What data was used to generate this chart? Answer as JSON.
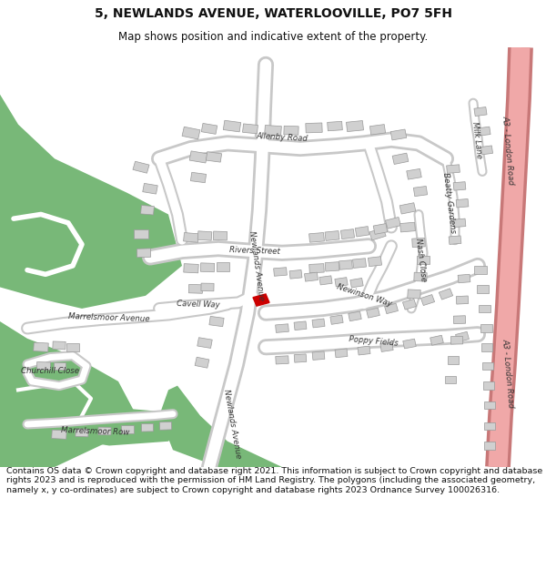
{
  "title_line1": "5, NEWLANDS AVENUE, WATERLOOVILLE, PO7 5FH",
  "title_line2": "Map shows position and indicative extent of the property.",
  "copyright_text": "Contains OS data © Crown copyright and database right 2021. This information is subject to Crown copyright and database rights 2023 and is reproduced with the permission of HM Land Registry. The polygons (including the associated geometry, namely x, y co-ordinates) are subject to Crown copyright and database rights 2023 Ordnance Survey 100026316.",
  "background_color": "#ffffff",
  "map_bg_color": "#f0f0f0",
  "road_color": "#ffffff",
  "road_outline_color": "#c8c8c8",
  "building_color": "#d0d0d0",
  "building_outline_color": "#999999",
  "green_color": "#78b878",
  "highlight_color": "#cc0000",
  "road_pink_color": "#f0a8a8",
  "road_pink_outline": "#c87878",
  "title_fontsize": 10,
  "subtitle_fontsize": 8.5,
  "copyright_fontsize": 6.8
}
